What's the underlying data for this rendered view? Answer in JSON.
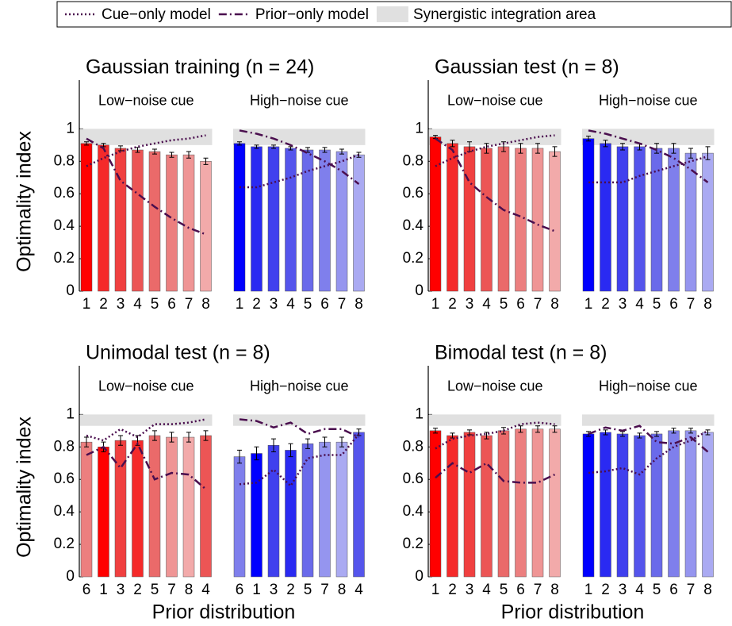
{
  "legend": [
    {
      "label": "Cue−only model",
      "style": "dotted"
    },
    {
      "label": "Prior−only model",
      "style": "dashdot"
    },
    {
      "label": "Synergistic integration area",
      "style": "area"
    }
  ],
  "line_color": "#4a0e4e",
  "band_color": "#e0e0e0",
  "chart_data": [
    {
      "type": "bar",
      "title": "Gaussian training (n = 24)",
      "ylabel": "Optimality index",
      "ylim": [
        0,
        1.3
      ],
      "yticks": [
        0,
        0.2,
        0.4,
        0.6,
        0.8,
        1
      ],
      "band": [
        0.9,
        1
      ],
      "groups": [
        {
          "label": "Low−noise cue",
          "categories": [
            "1",
            "2",
            "3",
            "4",
            "5",
            "6",
            "7",
            "8"
          ],
          "values": [
            0.91,
            0.9,
            0.88,
            0.87,
            0.86,
            0.84,
            0.84,
            0.8
          ],
          "errors": [
            0.01,
            0.01,
            0.015,
            0.015,
            0.015,
            0.015,
            0.02,
            0.02
          ],
          "colors": [
            "#ff0000",
            "#f52a2a",
            "#f04040",
            "#ec5555",
            "#ea6a6a",
            "#ec7f7f",
            "#ef9595",
            "#f2aaaa"
          ],
          "cue_only": [
            0.77,
            0.82,
            0.86,
            0.89,
            0.91,
            0.93,
            0.94,
            0.96
          ],
          "prior_only": [
            0.94,
            0.88,
            0.68,
            0.6,
            0.52,
            0.45,
            0.39,
            0.35
          ]
        },
        {
          "label": "High−noise cue",
          "categories": [
            "1",
            "2",
            "3",
            "4",
            "5",
            "6",
            "7",
            "8"
          ],
          "values": [
            0.91,
            0.89,
            0.89,
            0.88,
            0.87,
            0.87,
            0.86,
            0.84
          ],
          "errors": [
            0.01,
            0.01,
            0.01,
            0.01,
            0.015,
            0.015,
            0.015,
            0.015
          ],
          "colors": [
            "#0000ff",
            "#2a2af2",
            "#4040ee",
            "#5555ec",
            "#6a6aea",
            "#7f7fec",
            "#9595ef",
            "#aaaaf2"
          ],
          "cue_only": [
            0.64,
            0.64,
            0.67,
            0.7,
            0.74,
            0.77,
            0.8,
            0.84
          ],
          "prior_only": [
            0.99,
            0.97,
            0.94,
            0.9,
            0.85,
            0.8,
            0.74,
            0.66
          ]
        }
      ]
    },
    {
      "type": "bar",
      "title": "Gaussian test (n = 8)",
      "ylim": [
        0,
        1.3
      ],
      "yticks": [
        0,
        0.2,
        0.4,
        0.6,
        0.8,
        1
      ],
      "band": [
        0.9,
        1
      ],
      "groups": [
        {
          "label": "Low−noise cue",
          "categories": [
            "1",
            "2",
            "3",
            "4",
            "5",
            "6",
            "7",
            "8"
          ],
          "values": [
            0.95,
            0.91,
            0.89,
            0.88,
            0.89,
            0.88,
            0.88,
            0.86
          ],
          "errors": [
            0.01,
            0.02,
            0.03,
            0.03,
            0.03,
            0.03,
            0.03,
            0.03
          ],
          "colors": [
            "#ff0000",
            "#f52a2a",
            "#f04040",
            "#ec5555",
            "#ea6a6a",
            "#ec7f7f",
            "#ef9595",
            "#f2aaaa"
          ],
          "cue_only": [
            0.77,
            0.82,
            0.86,
            0.89,
            0.91,
            0.93,
            0.95,
            0.96
          ],
          "prior_only": [
            0.94,
            0.87,
            0.67,
            0.58,
            0.5,
            0.46,
            0.41,
            0.37
          ]
        },
        {
          "label": "High−noise cue",
          "categories": [
            "1",
            "2",
            "3",
            "4",
            "5",
            "6",
            "7",
            "8"
          ],
          "values": [
            0.94,
            0.91,
            0.89,
            0.89,
            0.88,
            0.88,
            0.85,
            0.85
          ],
          "errors": [
            0.015,
            0.02,
            0.02,
            0.02,
            0.03,
            0.03,
            0.03,
            0.04
          ],
          "colors": [
            "#0000ff",
            "#2a2af2",
            "#4040ee",
            "#5555ec",
            "#6a6aea",
            "#7f7fec",
            "#9595ef",
            "#aaaaf2"
          ],
          "cue_only": [
            0.67,
            0.67,
            0.67,
            0.71,
            0.74,
            0.77,
            0.8,
            0.83
          ],
          "prior_only": [
            0.99,
            0.97,
            0.94,
            0.91,
            0.87,
            0.82,
            0.75,
            0.67
          ]
        }
      ]
    },
    {
      "type": "bar",
      "title": "Unimodal test (n = 8)",
      "ylabel": "Optimality index",
      "xlabel": "Prior distribution",
      "ylim": [
        0,
        1.3
      ],
      "yticks": [
        0,
        0.2,
        0.4,
        0.6,
        0.8,
        1
      ],
      "band": [
        0.93,
        1
      ],
      "groups": [
        {
          "label": "Low−noise cue",
          "categories": [
            "6",
            "1",
            "3",
            "2",
            "5",
            "7",
            "8",
            "4"
          ],
          "values": [
            0.83,
            0.8,
            0.84,
            0.84,
            0.87,
            0.86,
            0.86,
            0.87
          ],
          "errors": [
            0.03,
            0.03,
            0.03,
            0.03,
            0.03,
            0.03,
            0.03,
            0.03
          ],
          "colors": [
            "#ec7f7f",
            "#ff0000",
            "#f04040",
            "#f52a2a",
            "#ea6a6a",
            "#ef9595",
            "#f2aaaa",
            "#ec5555"
          ],
          "cue_only": [
            0.87,
            0.84,
            0.91,
            0.86,
            0.94,
            0.94,
            0.95,
            0.97
          ],
          "prior_only": [
            0.75,
            0.8,
            0.67,
            0.82,
            0.6,
            0.64,
            0.63,
            0.54
          ]
        },
        {
          "label": "High−noise cue",
          "categories": [
            "6",
            "1",
            "3",
            "2",
            "5",
            "7",
            "8",
            "4"
          ],
          "values": [
            0.74,
            0.76,
            0.81,
            0.78,
            0.82,
            0.83,
            0.83,
            0.89
          ],
          "errors": [
            0.04,
            0.04,
            0.04,
            0.04,
            0.03,
            0.03,
            0.03,
            0.02
          ],
          "colors": [
            "#7f7fec",
            "#0000ff",
            "#4040ee",
            "#2a2af2",
            "#6a6aea",
            "#9595ef",
            "#aaaaf2",
            "#5555ec"
          ],
          "cue_only": [
            0.57,
            0.58,
            0.66,
            0.56,
            0.73,
            0.75,
            0.75,
            0.88
          ],
          "prior_only": [
            0.97,
            0.96,
            0.92,
            0.95,
            0.88,
            0.91,
            0.91,
            0.86
          ]
        }
      ]
    },
    {
      "type": "bar",
      "title": "Bimodal test (n = 8)",
      "xlabel": "Prior distribution",
      "ylim": [
        0,
        1.3
      ],
      "yticks": [
        0,
        0.2,
        0.4,
        0.6,
        0.8,
        1
      ],
      "band": [
        0.93,
        1
      ],
      "groups": [
        {
          "label": "Low−noise cue",
          "categories": [
            "1",
            "2",
            "3",
            "4",
            "5",
            "6",
            "7",
            "8"
          ],
          "values": [
            0.9,
            0.87,
            0.89,
            0.87,
            0.9,
            0.91,
            0.91,
            0.91
          ],
          "errors": [
            0.015,
            0.015,
            0.015,
            0.02,
            0.02,
            0.02,
            0.02,
            0.02
          ],
          "colors": [
            "#ff0000",
            "#f52a2a",
            "#f04040",
            "#ec5555",
            "#ea6a6a",
            "#ec7f7f",
            "#ef9595",
            "#f2aaaa"
          ],
          "cue_only": [
            0.79,
            0.85,
            0.87,
            0.88,
            0.9,
            0.94,
            0.95,
            0.94
          ],
          "prior_only": [
            0.61,
            0.7,
            0.64,
            0.7,
            0.59,
            0.58,
            0.58,
            0.63
          ]
        },
        {
          "label": "High−noise cue",
          "categories": [
            "1",
            "2",
            "3",
            "4",
            "5",
            "6",
            "7",
            "8"
          ],
          "values": [
            0.88,
            0.89,
            0.88,
            0.87,
            0.88,
            0.9,
            0.9,
            0.89
          ],
          "errors": [
            0.015,
            0.015,
            0.015,
            0.015,
            0.015,
            0.015,
            0.015,
            0.015
          ],
          "colors": [
            "#0000ff",
            "#2a2af2",
            "#4040ee",
            "#5555ec",
            "#6a6aea",
            "#7f7fec",
            "#9595ef",
            "#aaaaf2"
          ],
          "cue_only": [
            0.64,
            0.65,
            0.67,
            0.63,
            0.73,
            0.8,
            0.84,
            0.9
          ],
          "prior_only": [
            0.88,
            0.92,
            0.9,
            0.93,
            0.83,
            0.82,
            0.86,
            0.77
          ]
        }
      ]
    }
  ]
}
